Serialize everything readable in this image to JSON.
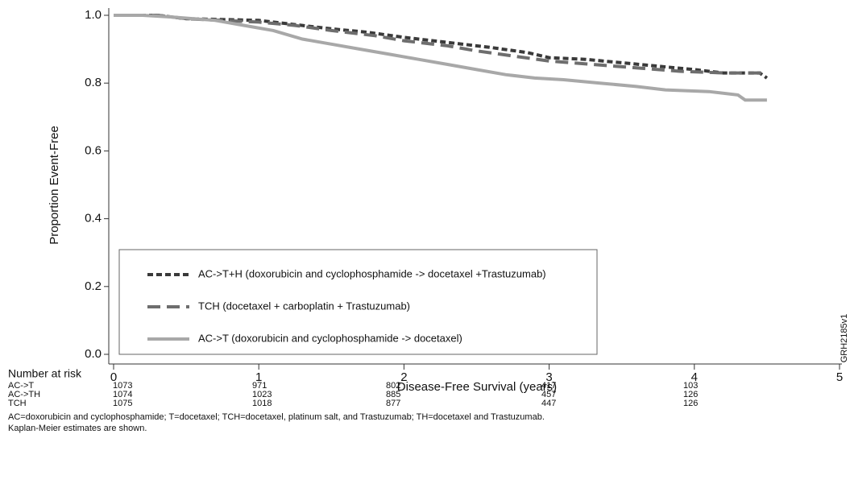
{
  "chart_data": {
    "type": "line",
    "step": true,
    "xlabel": "Disease-Free Survival (years)",
    "ylabel": "Proportion Event-Free",
    "xlim": [
      0,
      5
    ],
    "ylim": [
      0,
      1
    ],
    "xticks": [
      0,
      1,
      2,
      3,
      4,
      5
    ],
    "yticks": [
      {
        "value": 0,
        "label": "0.0"
      },
      0.2,
      0.4,
      0.6,
      0.8,
      {
        "value": 1,
        "label": "1.0"
      }
    ],
    "legend": "lower-left",
    "figure_id": "GRH2185v1",
    "series": [
      {
        "name": "AC->T+H (doxorubicin and cyclophosphamide -> docetaxel +Trastuzumab)",
        "color": "#3a3a3a",
        "line_style": "dotted",
        "x": [
          0,
          0.3,
          0.5,
          1,
          1.2,
          1.5,
          1.75,
          2,
          2.3,
          2.6,
          2.85,
          3,
          3.25,
          3.5,
          3.75,
          4,
          4.2,
          4.45,
          4.5
        ],
        "values": [
          1,
          1,
          0.99,
          0.985,
          0.975,
          0.96,
          0.95,
          0.935,
          0.92,
          0.905,
          0.89,
          0.875,
          0.87,
          0.86,
          0.85,
          0.84,
          0.83,
          0.83,
          0.815
        ]
      },
      {
        "name": "TCH (docetaxel + carboplatin + Trastuzumab)",
        "color": "#6e6e6e",
        "line_style": "dashed",
        "x": [
          0,
          0.3,
          0.5,
          1,
          1.25,
          1.5,
          1.8,
          2,
          2.3,
          2.5,
          2.75,
          3,
          3.3,
          3.6,
          3.9,
          4.2,
          4.5
        ],
        "values": [
          1,
          1,
          0.99,
          0.98,
          0.97,
          0.955,
          0.94,
          0.925,
          0.91,
          0.895,
          0.88,
          0.865,
          0.855,
          0.845,
          0.835,
          0.83,
          0.83
        ]
      },
      {
        "name": "AC->T (doxorubicin and cyclophosphamide -> docetaxel)",
        "color": "#a8a8a8",
        "line_style": "solid",
        "x": [
          0,
          0.2,
          0.4,
          0.7,
          0.9,
          1.1,
          1.3,
          1.5,
          1.7,
          1.9,
          2.1,
          2.3,
          2.5,
          2.7,
          2.9,
          3.1,
          3.35,
          3.6,
          3.8,
          4.1,
          4.3,
          4.35,
          4.5
        ],
        "values": [
          1,
          1,
          0.995,
          0.985,
          0.97,
          0.955,
          0.93,
          0.915,
          0.9,
          0.885,
          0.87,
          0.855,
          0.84,
          0.825,
          0.815,
          0.81,
          0.8,
          0.79,
          0.78,
          0.775,
          0.765,
          0.75,
          0.75
        ]
      }
    ],
    "number_at_risk": {
      "title": "Number at risk",
      "rows": [
        {
          "label": "AC->T",
          "values": [
            1073,
            971,
            802,
            417,
            103
          ]
        },
        {
          "label": "AC->TH",
          "values": [
            1074,
            1023,
            885,
            457,
            126
          ]
        },
        {
          "label": "TCH",
          "values": [
            1075,
            1018,
            877,
            447,
            126
          ]
        }
      ]
    },
    "footnotes": [
      "AC=doxorubicin and cyclophosphamide; T=docetaxel; TCH=docetaxel, platinum salt, and Trastuzumab; TH=docetaxel and Trastuzumab.",
      "Kaplan-Meier estimates are shown."
    ]
  }
}
